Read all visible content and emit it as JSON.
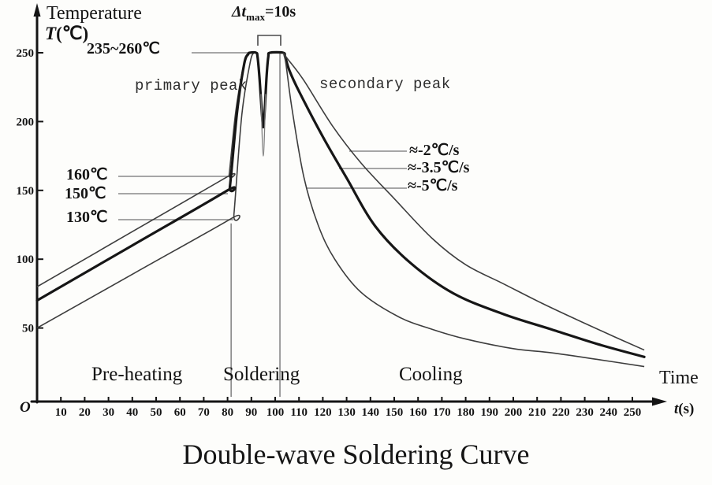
{
  "title": "Double-wave Soldering Curve",
  "axes": {
    "y_title": "Temperature",
    "y_symbol": "T",
    "y_unit": "(℃)",
    "x_symbol": "t",
    "x_unit": "(s)",
    "time_label": "Time",
    "origin": "O"
  },
  "annotations": {
    "peak_range": "235~260℃",
    "dt_prefix": "Δt",
    "dt_sub": "max",
    "dt_suffix": "=10s",
    "primary_peak": "primary peak",
    "secondary_peak": "secondary peak",
    "preheat_high": "160℃",
    "preheat_mid": "150℃",
    "preheat_low": "130℃",
    "rate_slow": "≈-2℃/s",
    "rate_mid": "≈-3.5℃/s",
    "rate_fast": "≈-5℃/s",
    "phase_preheat": "Pre-heating",
    "phase_solder": "Soldering",
    "phase_cool": "Cooling"
  },
  "chart_data": {
    "type": "line",
    "title": "Double-wave Soldering Curve",
    "xlabel": "t(s)",
    "ylabel": "Temperature T(℃)",
    "xlim": [
      0,
      260
    ],
    "ylim": [
      0,
      265
    ],
    "x_ticks": [
      10,
      20,
      30,
      40,
      50,
      60,
      70,
      80,
      90,
      100,
      110,
      120,
      130,
      140,
      150,
      160,
      170,
      180,
      190,
      200,
      210,
      220,
      230,
      240,
      250
    ],
    "y_ticks": [
      50,
      100,
      150,
      200,
      250
    ],
    "phases": [
      {
        "label": "Pre-heating",
        "t_range": [
          0,
          80
        ]
      },
      {
        "label": "Soldering",
        "t_range": [
          80,
          100
        ]
      },
      {
        "label": "Cooling",
        "t_range": [
          100,
          250
        ]
      }
    ],
    "key_values": {
      "peak_temperature_range_C": "235~260",
      "peak_separation_s": 10,
      "primary_peak_t_s": 91,
      "secondary_peak_t_s": 101,
      "dip_temperature_C": 200,
      "preheat_end_temps_C": [
        160,
        150,
        130
      ],
      "preheat_start_temps_C": [
        80,
        70,
        50
      ],
      "cooling_rates_C_per_s": [
        -2,
        -3.5,
        -5
      ]
    },
    "series": [
      {
        "name": "preheat-upper-160C",
        "style": "thin",
        "points": [
          [
            0,
            80
          ],
          [
            40,
            120
          ],
          [
            80,
            160
          ],
          [
            80.7,
            162
          ],
          [
            83.5,
            208
          ],
          [
            87,
            243
          ],
          [
            88.7,
            250
          ]
        ]
      },
      {
        "name": "preheat-lower-130C",
        "style": "thin",
        "points": [
          [
            0,
            50
          ],
          [
            41,
            90
          ],
          [
            82,
            130
          ],
          [
            82.7,
            133
          ],
          [
            86,
            205
          ],
          [
            89.5,
            243
          ],
          [
            91,
            250
          ]
        ]
      },
      {
        "name": "main-profile-bold-3.5Cps",
        "style": "bold",
        "points": [
          [
            0,
            70
          ],
          [
            40,
            110
          ],
          [
            80,
            150
          ],
          [
            81,
            153
          ],
          [
            84,
            207
          ],
          [
            87,
            242
          ],
          [
            88.7,
            249
          ],
          [
            89.3,
            250
          ],
          [
            92,
            250
          ],
          [
            92.6,
            247
          ],
          [
            93.4,
            232
          ],
          [
            94.7,
            200
          ],
          [
            95.3,
            200
          ],
          [
            96.4,
            233
          ],
          [
            97.1,
            247
          ],
          [
            97.8,
            250
          ],
          [
            103.4,
            250
          ],
          [
            104.2,
            247
          ],
          [
            106,
            237
          ],
          [
            110,
            222
          ],
          [
            120,
            189
          ],
          [
            130,
            159
          ],
          [
            142,
            124
          ],
          [
            157,
            97
          ],
          [
            175,
            75
          ],
          [
            196,
            60
          ],
          [
            216,
            49
          ],
          [
            236,
            38
          ],
          [
            255,
            29
          ]
        ]
      },
      {
        "name": "dip-inner",
        "style": "faint",
        "points": [
          [
            94,
            220
          ],
          [
            95,
            175
          ],
          [
            96,
            220
          ]
        ]
      },
      {
        "name": "cooling-2Cps",
        "style": "thin",
        "points": [
          [
            103.4,
            250
          ],
          [
            105,
            246
          ],
          [
            112,
            230
          ],
          [
            124,
            197
          ],
          [
            136,
            170
          ],
          [
            150,
            144
          ],
          [
            166,
            115
          ],
          [
            180,
            96
          ],
          [
            196,
            82
          ],
          [
            212,
            68
          ],
          [
            228,
            55
          ],
          [
            242,
            44
          ],
          [
            255,
            34
          ]
        ]
      },
      {
        "name": "cooling-5Cps",
        "style": "thin",
        "points": [
          [
            103.4,
            250
          ],
          [
            104.5,
            242
          ],
          [
            107,
            210
          ],
          [
            112,
            160
          ],
          [
            118,
            125
          ],
          [
            125,
            100
          ],
          [
            136,
            76
          ],
          [
            152,
            58
          ],
          [
            166,
            49
          ],
          [
            180,
            42
          ],
          [
            200,
            35
          ],
          [
            216,
            32
          ],
          [
            236,
            27
          ],
          [
            255,
            22
          ]
        ]
      }
    ],
    "guides": [
      {
        "t": 81.5,
        "T_range": [
          0,
          126
        ]
      },
      {
        "t": 102,
        "T_range": [
          0,
          250
        ]
      }
    ],
    "legend": "none",
    "grid": false
  }
}
